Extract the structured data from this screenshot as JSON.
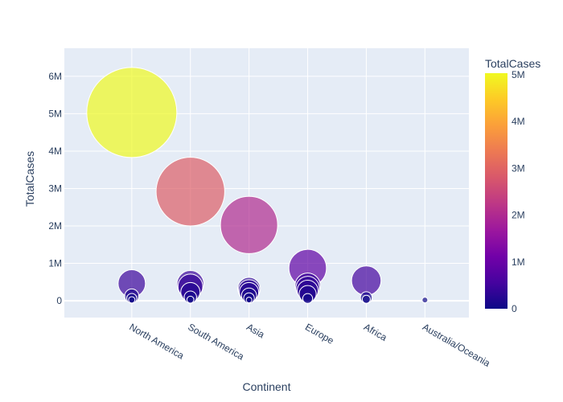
{
  "chart_data": {
    "type": "scatter",
    "title": "",
    "xlabel": "Continent",
    "ylabel": "TotalCases",
    "categories": [
      "North America",
      "South America",
      "Asia",
      "Europe",
      "Africa",
      "Australia/Oceania"
    ],
    "ylim": [
      -450000,
      6750000
    ],
    "y_ticks": [
      0,
      1000000,
      2000000,
      3000000,
      4000000,
      5000000,
      6000000
    ],
    "y_tick_labels": [
      "0",
      "1M",
      "2M",
      "3M",
      "4M",
      "5M",
      "6M"
    ],
    "size_and_color_by": "TotalCases",
    "grid": true,
    "colorbar": {
      "title": "TotalCases",
      "range": [
        0,
        5032179
      ],
      "ticks": [
        0,
        1000000,
        2000000,
        3000000,
        4000000,
        5000000
      ],
      "tick_labels": [
        "0",
        "1M",
        "2M",
        "3M",
        "4M",
        "5M"
      ],
      "colorscale": [
        "#0d0887",
        "#46039f",
        "#7201a8",
        "#9c179e",
        "#bd3786",
        "#d8576b",
        "#ed7953",
        "#fb9f3a",
        "#fdca26",
        "#f0f921"
      ]
    },
    "points": [
      {
        "continent": "North America",
        "value": 5032179
      },
      {
        "continent": "North America",
        "value": 462690
      },
      {
        "continent": "North America",
        "value": 125418
      },
      {
        "continent": "North America",
        "value": 62000
      },
      {
        "continent": "North America",
        "value": 25000
      },
      {
        "continent": "South America",
        "value": 2917562
      },
      {
        "continent": "South America",
        "value": 447624
      },
      {
        "continent": "South America",
        "value": 381000
      },
      {
        "continent": "South America",
        "value": 230000
      },
      {
        "continent": "South America",
        "value": 95000
      },
      {
        "continent": "South America",
        "value": 30000
      },
      {
        "continent": "Asia",
        "value": 2025409
      },
      {
        "continent": "Asia",
        "value": 320000
      },
      {
        "continent": "Asia",
        "value": 280000
      },
      {
        "continent": "Asia",
        "value": 230000
      },
      {
        "continent": "Asia",
        "value": 140000
      },
      {
        "continent": "Asia",
        "value": 70000
      },
      {
        "continent": "Asia",
        "value": 20000
      },
      {
        "continent": "Europe",
        "value": 871894
      },
      {
        "continent": "Europe",
        "value": 400000
      },
      {
        "continent": "Europe",
        "value": 340000
      },
      {
        "continent": "Europe",
        "value": 270000
      },
      {
        "continent": "Europe",
        "value": 180000
      },
      {
        "continent": "Europe",
        "value": 60000
      },
      {
        "continent": "Africa",
        "value": 538184
      },
      {
        "continent": "Africa",
        "value": 85000
      },
      {
        "continent": "Africa",
        "value": 40000
      },
      {
        "continent": "Australia/Oceania",
        "value": 19890
      }
    ]
  }
}
